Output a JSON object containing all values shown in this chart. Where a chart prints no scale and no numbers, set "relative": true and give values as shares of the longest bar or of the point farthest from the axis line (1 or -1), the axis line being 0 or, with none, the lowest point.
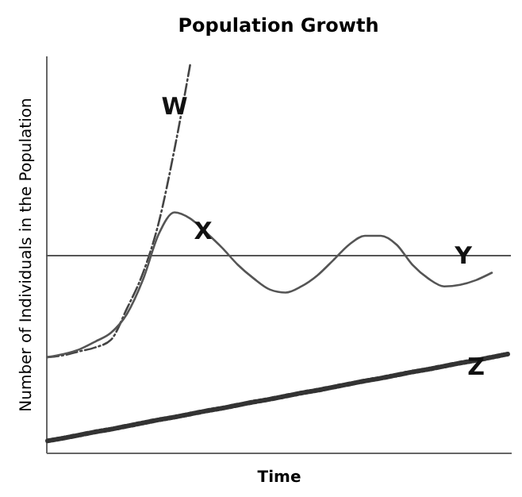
{
  "chart_data": {
    "type": "line",
    "title": "Population Growth",
    "xlabel": "Time",
    "ylabel": "Number of Individuals in the Population",
    "relative": true,
    "categories": [
      null,
      null,
      null,
      null,
      null,
      null,
      null,
      null,
      null,
      null,
      null,
      null,
      null,
      null,
      null,
      null,
      null,
      null,
      null,
      null,
      null,
      null,
      null,
      null,
      null,
      null,
      null,
      null,
      null,
      null
    ],
    "series": [
      {
        "name": "W",
        "color": "#444444",
        "line_style": "dashed",
        "values": [
          0.245,
          0.25,
          0.26,
          0.27,
          0.29,
          0.37,
          0.46,
          0.59,
          0.78,
          1.0,
          null,
          null,
          null,
          null,
          null,
          null,
          null,
          null,
          null,
          null,
          null,
          null,
          null,
          null,
          null,
          null,
          null,
          null,
          null,
          null
        ]
      },
      {
        "name": "X",
        "color": "#555555",
        "line_style": "solid",
        "values": [
          0.245,
          0.253,
          0.265,
          0.285,
          0.308,
          0.356,
          0.443,
          0.561,
          0.617,
          0.601,
          0.565,
          0.526,
          0.482,
          0.447,
          0.419,
          0.411,
          0.427,
          0.455,
          0.494,
          0.534,
          0.557,
          0.557,
          0.534,
          0.482,
          0.447,
          0.427,
          0.431,
          0.443,
          0.462,
          null
        ]
      },
      {
        "name": "Z",
        "color": "#333333",
        "line_style": "dotted",
        "values": [
          0.03,
          0.037,
          0.045,
          0.053,
          0.06,
          0.068,
          0.076,
          0.084,
          0.091,
          0.099,
          0.107,
          0.114,
          0.122,
          0.13,
          0.137,
          0.145,
          0.153,
          0.16,
          0.168,
          0.176,
          0.184,
          0.191,
          0.199,
          0.207,
          0.214,
          0.222,
          0.23,
          0.237,
          0.245,
          0.253
        ]
      }
    ],
    "ref_lines": [
      {
        "axis": "y",
        "value": 0.506,
        "label": "Y",
        "color": "#555555"
      }
    ]
  }
}
